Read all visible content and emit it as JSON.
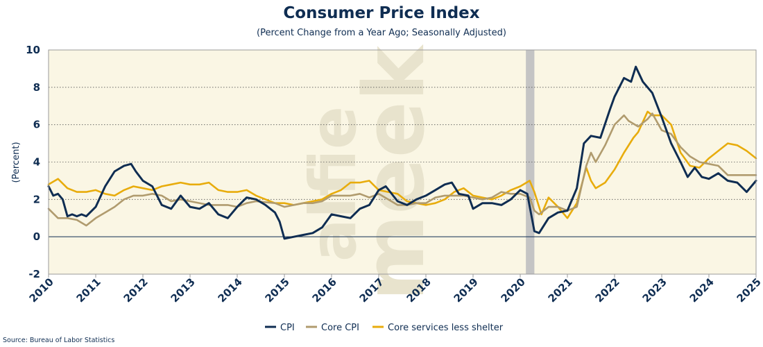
{
  "header": {
    "title": "Consumer Price Index",
    "subtitle": "(Percent Change from a Year Ago; Seasonally Adjusted)"
  },
  "footer": {
    "source": "Source: Bureau of Labor Statistics"
  },
  "watermark": {
    "line1": "alfie",
    "line2": "meek"
  },
  "colors": {
    "plot_bg": "#faf6e4",
    "cpi": "#0f2d52",
    "core_cpi": "#b09b6e",
    "core_services": "#e8ac0c",
    "recession": "#c4c4c4",
    "text": "#0f2d52"
  },
  "chart_data": {
    "type": "line",
    "title": "Consumer Price Index",
    "subtitle": "(Percent Change from a Year Ago; Seasonally Adjusted)",
    "ylabel": "(Percent)",
    "xlabel": "",
    "ylim": [
      -2,
      10
    ],
    "xlim": [
      2010,
      2025
    ],
    "yticks": [
      -2,
      0,
      2,
      4,
      6,
      8,
      10
    ],
    "xticks": [
      2010,
      2011,
      2012,
      2013,
      2014,
      2015,
      2016,
      2017,
      2018,
      2019,
      2020,
      2021,
      2022,
      2023,
      2024,
      2025
    ],
    "grid": "horizontal dotted",
    "legend": "bottom-center",
    "recession_shading": [
      2020.12,
      2020.3
    ],
    "series": [
      {
        "name": "CPI",
        "color": "#0f2d52",
        "x": [
          2010.0,
          2010.1,
          2010.2,
          2010.3,
          2010.4,
          2010.5,
          2010.6,
          2010.7,
          2010.8,
          2011.0,
          2011.2,
          2011.4,
          2011.6,
          2011.75,
          2011.85,
          2012.0,
          2012.2,
          2012.4,
          2012.6,
          2012.8,
          2013.0,
          2013.2,
          2013.4,
          2013.6,
          2013.8,
          2014.0,
          2014.2,
          2014.4,
          2014.6,
          2014.8,
          2014.9,
          2015.0,
          2015.2,
          2015.4,
          2015.6,
          2015.8,
          2016.0,
          2016.2,
          2016.4,
          2016.6,
          2016.8,
          2017.0,
          2017.15,
          2017.4,
          2017.6,
          2017.8,
          2018.0,
          2018.2,
          2018.4,
          2018.55,
          2018.7,
          2018.9,
          2019.0,
          2019.2,
          2019.4,
          2019.6,
          2019.8,
          2020.0,
          2020.15,
          2020.3,
          2020.4,
          2020.6,
          2020.8,
          2021.0,
          2021.2,
          2021.35,
          2021.5,
          2021.7,
          2021.9,
          2022.0,
          2022.2,
          2022.35,
          2022.45,
          2022.6,
          2022.8,
          2023.0,
          2023.2,
          2023.4,
          2023.55,
          2023.7,
          2023.85,
          2024.0,
          2024.2,
          2024.4,
          2024.6,
          2024.8,
          2025.0
        ],
        "values": [
          2.7,
          2.2,
          2.3,
          2.0,
          1.1,
          1.2,
          1.1,
          1.2,
          1.1,
          1.6,
          2.7,
          3.5,
          3.8,
          3.9,
          3.5,
          3.0,
          2.7,
          1.7,
          1.5,
          2.2,
          1.6,
          1.5,
          1.8,
          1.2,
          1.0,
          1.6,
          2.1,
          2.0,
          1.7,
          1.3,
          0.8,
          -0.1,
          0.0,
          0.1,
          0.2,
          0.5,
          1.2,
          1.1,
          1.0,
          1.5,
          1.7,
          2.5,
          2.7,
          1.9,
          1.7,
          2.0,
          2.2,
          2.5,
          2.8,
          2.9,
          2.3,
          2.2,
          1.5,
          1.8,
          1.8,
          1.7,
          2.0,
          2.5,
          2.3,
          0.3,
          0.2,
          1.0,
          1.3,
          1.4,
          2.6,
          5.0,
          5.4,
          5.3,
          6.8,
          7.5,
          8.5,
          8.3,
          9.1,
          8.3,
          7.7,
          6.4,
          5.0,
          4.0,
          3.2,
          3.7,
          3.2,
          3.1,
          3.4,
          3.0,
          2.9,
          2.4,
          3.0
        ]
      },
      {
        "name": "Core CPI",
        "color": "#b09b6e",
        "x": [
          2010.0,
          2010.2,
          2010.4,
          2010.6,
          2010.8,
          2011.0,
          2011.2,
          2011.4,
          2011.6,
          2011.8,
          2012.0,
          2012.2,
          2012.4,
          2012.6,
          2012.8,
          2013.0,
          2013.4,
          2013.8,
          2014.0,
          2014.2,
          2014.4,
          2014.8,
          2015.0,
          2015.2,
          2015.4,
          2015.6,
          2015.8,
          2016.0,
          2016.2,
          2016.4,
          2016.6,
          2016.8,
          2017.0,
          2017.2,
          2017.4,
          2017.6,
          2017.8,
          2018.0,
          2018.2,
          2018.4,
          2018.6,
          2018.8,
          2019.0,
          2019.2,
          2019.4,
          2019.6,
          2019.8,
          2020.0,
          2020.2,
          2020.3,
          2020.4,
          2020.6,
          2020.8,
          2021.0,
          2021.2,
          2021.4,
          2021.5,
          2021.6,
          2021.8,
          2022.0,
          2022.2,
          2022.3,
          2022.5,
          2022.7,
          2022.8,
          2023.0,
          2023.2,
          2023.4,
          2023.6,
          2023.8,
          2024.0,
          2024.2,
          2024.4,
          2024.6,
          2024.8,
          2025.0
        ],
        "values": [
          1.5,
          1.0,
          1.0,
          0.9,
          0.6,
          1.0,
          1.3,
          1.6,
          2.0,
          2.2,
          2.2,
          2.3,
          2.2,
          1.9,
          2.0,
          1.9,
          1.7,
          1.7,
          1.6,
          1.8,
          1.9,
          1.8,
          1.6,
          1.7,
          1.8,
          1.8,
          1.9,
          2.2,
          2.2,
          2.2,
          2.3,
          2.1,
          2.3,
          2.0,
          1.7,
          1.7,
          1.8,
          1.8,
          2.1,
          2.2,
          2.2,
          2.2,
          2.1,
          2.0,
          2.1,
          2.4,
          2.3,
          2.3,
          2.1,
          1.4,
          1.2,
          1.6,
          1.6,
          1.4,
          1.6,
          3.8,
          4.5,
          4.0,
          4.9,
          6.0,
          6.5,
          6.2,
          5.9,
          6.3,
          6.6,
          5.7,
          5.5,
          4.8,
          4.3,
          4.0,
          3.9,
          3.8,
          3.3,
          3.3,
          3.3,
          3.3
        ]
      },
      {
        "name": "Core services less shelter",
        "color": "#e8ac0c",
        "x": [
          2010.0,
          2010.2,
          2010.4,
          2010.6,
          2010.8,
          2011.0,
          2011.2,
          2011.4,
          2011.6,
          2011.8,
          2012.0,
          2012.2,
          2012.4,
          2012.6,
          2012.8,
          2013.0,
          2013.2,
          2013.4,
          2013.6,
          2013.8,
          2014.0,
          2014.2,
          2014.4,
          2014.6,
          2014.8,
          2015.0,
          2015.2,
          2015.4,
          2015.6,
          2015.8,
          2016.0,
          2016.2,
          2016.4,
          2016.6,
          2016.8,
          2017.0,
          2017.2,
          2017.4,
          2017.6,
          2017.8,
          2018.0,
          2018.2,
          2018.4,
          2018.6,
          2018.8,
          2019.0,
          2019.2,
          2019.4,
          2019.6,
          2019.8,
          2020.0,
          2020.2,
          2020.3,
          2020.45,
          2020.6,
          2020.8,
          2021.0,
          2021.2,
          2021.4,
          2021.5,
          2021.6,
          2021.8,
          2022.0,
          2022.2,
          2022.4,
          2022.5,
          2022.7,
          2022.8,
          2023.0,
          2023.2,
          2023.4,
          2023.6,
          2023.8,
          2024.0,
          2024.2,
          2024.4,
          2024.6,
          2024.8,
          2025.0
        ],
        "values": [
          2.8,
          3.1,
          2.6,
          2.4,
          2.4,
          2.5,
          2.3,
          2.2,
          2.5,
          2.7,
          2.6,
          2.5,
          2.7,
          2.8,
          2.9,
          2.8,
          2.8,
          2.9,
          2.5,
          2.4,
          2.4,
          2.5,
          2.2,
          2.0,
          1.8,
          1.8,
          1.7,
          1.8,
          1.9,
          2.0,
          2.3,
          2.5,
          2.9,
          2.9,
          3.0,
          2.5,
          2.4,
          2.3,
          1.9,
          1.8,
          1.7,
          1.8,
          2.0,
          2.4,
          2.6,
          2.2,
          2.1,
          2.0,
          2.2,
          2.5,
          2.7,
          3.0,
          2.4,
          1.2,
          2.1,
          1.6,
          1.0,
          1.8,
          3.7,
          3.0,
          2.6,
          2.9,
          3.6,
          4.5,
          5.3,
          5.6,
          6.7,
          6.5,
          6.5,
          6.0,
          4.5,
          3.8,
          3.7,
          4.2,
          4.6,
          5.0,
          4.9,
          4.6,
          4.2
        ]
      }
    ]
  }
}
